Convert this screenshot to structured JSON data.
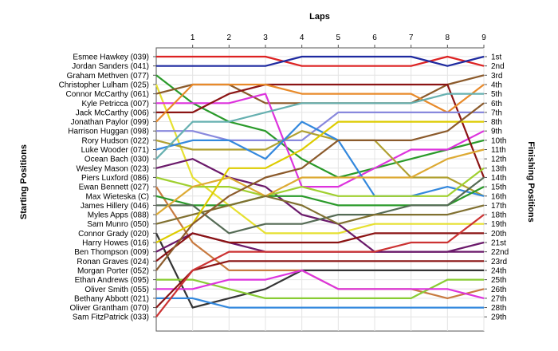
{
  "chart_data": {
    "type": "line",
    "title": "Laps",
    "xlabel": "Laps",
    "ylabel": "Starting Positions",
    "y2label": "Finishing Positions",
    "x": [
      0,
      1,
      2,
      3,
      4,
      5,
      6,
      7,
      8,
      9
    ],
    "x_tick_labels": [
      "1",
      "2",
      "3",
      "4",
      "5",
      "6",
      "7",
      "8",
      "9"
    ],
    "y_range": [
      1,
      29
    ],
    "y_inverted": true,
    "finishing_labels": [
      "1st",
      "2nd",
      "3rd",
      "4th",
      "5th",
      "6th",
      "7th",
      "8th",
      "9th",
      "10th",
      "11th",
      "12th",
      "13th",
      "14th",
      "15th",
      "16th",
      "17th",
      "18th",
      "19th",
      "20th",
      "21st",
      "22nd",
      "23rd",
      "24th",
      "25th",
      "26th",
      "27th",
      "28th",
      "29th"
    ],
    "grid": true,
    "legend": "none",
    "series": [
      {
        "name": "Esmee Hawkey (039)",
        "color": "#dd2222",
        "positions": [
          1,
          1,
          1,
          1,
          2,
          2,
          2,
          2,
          1,
          2
        ]
      },
      {
        "name": "Jordan Sanders (041)",
        "color": "#1e2aa0",
        "positions": [
          2,
          2,
          2,
          2,
          1,
          1,
          1,
          1,
          2,
          1
        ]
      },
      {
        "name": "Graham Methven (077)",
        "color": "#2a9a2a",
        "positions": [
          3,
          6,
          8,
          9,
          12,
          14,
          13,
          12,
          11,
          10
        ]
      },
      {
        "name": "Christopher Lulham (025)",
        "color": "#e6e030",
        "positions": [
          4,
          14,
          17,
          20,
          20,
          20,
          19,
          19,
          19,
          19
        ]
      },
      {
        "name": "Connor McCarthy (061)",
        "color": "#8b5a2b",
        "positions": [
          5,
          4,
          4,
          6,
          6,
          6,
          6,
          6,
          4,
          3
        ]
      },
      {
        "name": "Kyle Petricca (007)",
        "color": "#dd33dd",
        "positions": [
          6,
          6,
          6,
          5,
          15,
          15,
          13,
          11,
          11,
          9
        ]
      },
      {
        "name": "Jack McCarthy (006)",
        "color": "#8b1414",
        "positions": [
          7,
          7,
          5,
          4,
          4,
          4,
          4,
          4,
          4,
          14
        ]
      },
      {
        "name": "Jonathan Paylor (099)",
        "color": "#e88a2a",
        "positions": [
          8,
          4,
          4,
          4,
          5,
          5,
          5,
          5,
          7,
          4
        ]
      },
      {
        "name": "Harrison Huggan (098)",
        "color": "#8888dd",
        "positions": [
          9,
          9,
          10,
          10,
          10,
          7,
          7,
          7,
          7,
          7
        ]
      },
      {
        "name": "Rory Hudson (022)",
        "color": "#b0a030",
        "positions": [
          10,
          11,
          11,
          11,
          9,
          10,
          10,
          14,
          14,
          16
        ]
      },
      {
        "name": "Luke Wooder (071)",
        "color": "#3388dd",
        "positions": [
          11,
          10,
          10,
          12,
          8,
          10,
          16,
          16,
          15,
          16
        ]
      },
      {
        "name": "Ocean Bach (030)",
        "color": "#66b0b0",
        "positions": [
          12,
          8,
          8,
          7,
          6,
          6,
          6,
          6,
          5,
          5
        ]
      },
      {
        "name": "Wesley Mason (023)",
        "color": "#6b1a6b",
        "positions": [
          13,
          12,
          14,
          15,
          18,
          19,
          22,
          22,
          22,
          22
        ]
      },
      {
        "name": "Piers Luxford (086)",
        "color": "#a0d030",
        "positions": [
          14,
          15,
          15,
          16,
          15,
          16,
          16,
          16,
          16,
          13
        ]
      },
      {
        "name": "Ewan Bennett (027)",
        "color": "#c87a40",
        "positions": [
          15,
          21,
          24,
          24,
          24,
          26,
          26,
          26,
          27,
          26
        ]
      },
      {
        "name": "Max Wieteska (C)",
        "color": "#2a9a2a",
        "positions": [
          16,
          17,
          17,
          16,
          16,
          17,
          17,
          17,
          17,
          15
        ]
      },
      {
        "name": "James Hillery (046)",
        "color": "#556b55",
        "positions": [
          17,
          17,
          20,
          19,
          19,
          18,
          18,
          17,
          17,
          14
        ]
      },
      {
        "name": "Myles Apps (088)",
        "color": "#ddaa33",
        "positions": [
          18,
          15,
          14,
          16,
          14,
          14,
          14,
          14,
          12,
          11
        ]
      },
      {
        "name": "Sam Munro (050)",
        "color": "#807030",
        "positions": [
          19,
          18,
          17,
          16,
          17,
          19,
          18,
          18,
          18,
          17
        ]
      },
      {
        "name": "Connor Grady (020)",
        "color": "#333333",
        "positions": [
          20,
          28,
          27,
          26,
          24,
          24,
          24,
          24,
          24,
          24
        ]
      },
      {
        "name": "Harry Howes (016)",
        "color": "#ddcc00",
        "positions": [
          21,
          19,
          13,
          13,
          11,
          8,
          8,
          8,
          8,
          8
        ]
      },
      {
        "name": "Ben Thompson (009)",
        "color": "#6b1a6b",
        "positions": [
          22,
          20,
          21,
          22,
          22,
          22,
          22,
          22,
          22,
          21
        ]
      },
      {
        "name": "Ronan Graves (024)",
        "color": "#8b1414",
        "positions": [
          23,
          20,
          21,
          21,
          21,
          21,
          20,
          20,
          20,
          20
        ]
      },
      {
        "name": "Morgan Porter (052)",
        "color": "#8b5a2b",
        "positions": [
          24,
          19,
          16,
          14,
          13,
          10,
          10,
          10,
          9,
          6
        ]
      },
      {
        "name": "Ethan Andrews (095)",
        "color": "#88cc33",
        "positions": [
          25,
          25,
          26,
          27,
          27,
          27,
          27,
          27,
          25,
          25
        ]
      },
      {
        "name": "Oliver Smith (055)",
        "color": "#dd33dd",
        "positions": [
          26,
          26,
          25,
          25,
          24,
          26,
          26,
          26,
          26,
          27
        ]
      },
      {
        "name": "Bethany Abbott (021)",
        "color": "#3388dd",
        "positions": [
          27,
          27,
          28,
          28,
          28,
          28,
          28,
          28,
          28,
          28
        ]
      },
      {
        "name": "Oliver Grantham (070)",
        "color": "#8b1414",
        "positions": [
          28,
          24,
          23,
          23,
          23,
          23,
          23,
          23,
          23,
          23
        ]
      },
      {
        "name": "Sam FitzPatrick (033)",
        "color": "#cc3333",
        "positions": [
          29,
          24,
          22,
          22,
          22,
          22,
          22,
          21,
          21,
          18
        ]
      }
    ]
  }
}
